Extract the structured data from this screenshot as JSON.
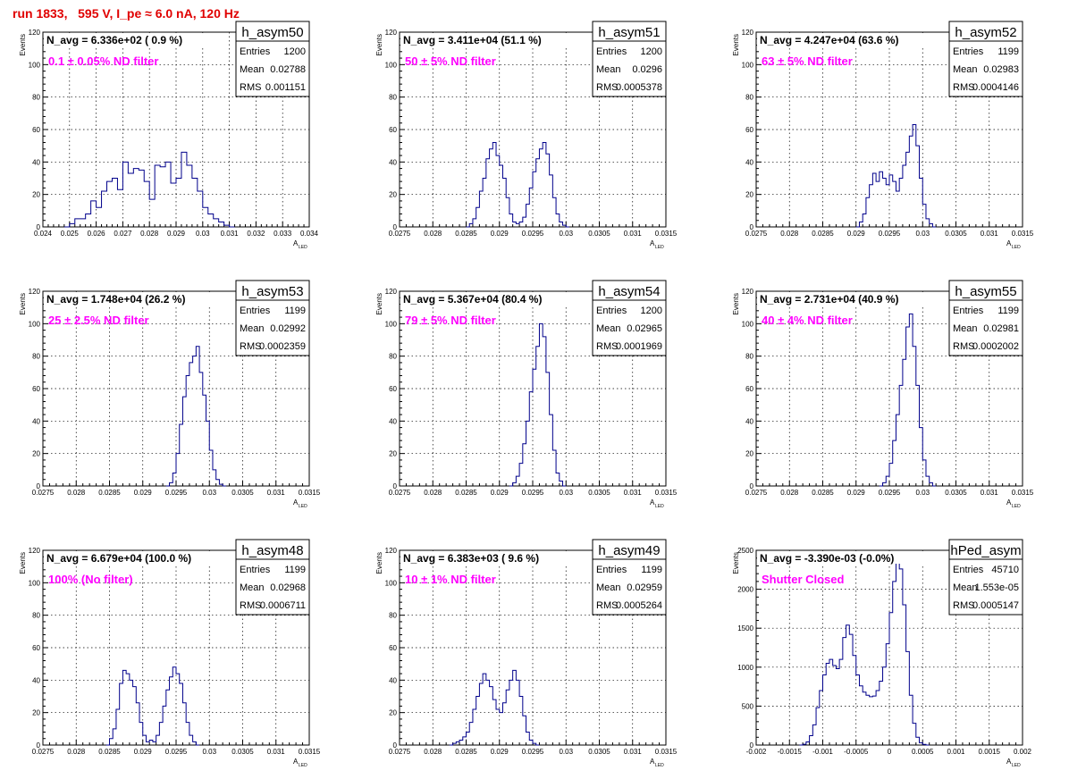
{
  "run_title": "run 1833,   595 V, I_pe ≈ 6.0 nA, 120 Hz",
  "ylabel": "Events",
  "xlabel_main": "A",
  "xlabel_sub": "LED",
  "stat_labels": [
    "Entries",
    "Mean",
    "RMS"
  ],
  "colors": {
    "histogram": "#00008b",
    "navg": "#000000",
    "annotation": "#ff00ff",
    "run_title": "#e00000",
    "grid": "#000000"
  },
  "chart_data": [
    {
      "type": "histogram",
      "name": "h_asym50",
      "navg": "N_avg = 6.336e+02 ( 0.9 %)",
      "annotation": "0.1 ± 0.05% ND filter",
      "stats": {
        "entries": "1200",
        "mean": "0.02788",
        "rms": "0.001151"
      },
      "xlim": [
        0.024,
        0.034
      ],
      "ylim": [
        0,
        120
      ],
      "xticks": [
        "0.024",
        "0.025",
        "0.026",
        "0.027",
        "0.028",
        "0.029",
        "0.03",
        "0.031",
        "0.032",
        "0.033",
        "0.034"
      ],
      "yticks": [
        "0",
        "20",
        "40",
        "60",
        "80",
        "100",
        "120"
      ],
      "bins": [
        [
          0.0248,
          0
        ],
        [
          0.025,
          2
        ],
        [
          0.0252,
          5
        ],
        [
          0.0254,
          5
        ],
        [
          0.0256,
          8
        ],
        [
          0.0258,
          16
        ],
        [
          0.026,
          12
        ],
        [
          0.0262,
          22
        ],
        [
          0.0264,
          28
        ],
        [
          0.0266,
          30
        ],
        [
          0.0268,
          23
        ],
        [
          0.027,
          40
        ],
        [
          0.0272,
          33
        ],
        [
          0.0274,
          36
        ],
        [
          0.0276,
          35
        ],
        [
          0.0278,
          28
        ],
        [
          0.028,
          17
        ],
        [
          0.0282,
          38
        ],
        [
          0.0284,
          37
        ],
        [
          0.0286,
          40
        ],
        [
          0.0288,
          27
        ],
        [
          0.029,
          30
        ],
        [
          0.0292,
          46
        ],
        [
          0.0294,
          38
        ],
        [
          0.0296,
          30
        ],
        [
          0.0298,
          22
        ],
        [
          0.03,
          12
        ],
        [
          0.0302,
          8
        ],
        [
          0.0304,
          5
        ],
        [
          0.0306,
          3
        ],
        [
          0.0308,
          1
        ],
        [
          0.031,
          0
        ]
      ]
    },
    {
      "type": "histogram",
      "name": "h_asym51",
      "navg": "N_avg = 3.411e+04 (51.1 %)",
      "annotation": "50 ± 5% ND filter",
      "stats": {
        "entries": "1200",
        "mean": "0.0296",
        "rms": "0.0005378"
      },
      "xlim": [
        0.0275,
        0.0315
      ],
      "ylim": [
        0,
        120
      ],
      "xticks": [
        "0.0275",
        "0.028",
        "0.0285",
        "0.029",
        "0.0295",
        "0.03",
        "0.0305",
        "0.031",
        "0.0315"
      ],
      "yticks": [
        "0",
        "20",
        "40",
        "60",
        "80",
        "100",
        "120"
      ],
      "bins": [
        [
          0.0285,
          0
        ],
        [
          0.02855,
          2
        ],
        [
          0.0286,
          5
        ],
        [
          0.02865,
          12
        ],
        [
          0.0287,
          22
        ],
        [
          0.02875,
          30
        ],
        [
          0.0288,
          42
        ],
        [
          0.02885,
          48
        ],
        [
          0.0289,
          52
        ],
        [
          0.02895,
          44
        ],
        [
          0.029,
          38
        ],
        [
          0.02905,
          30
        ],
        [
          0.0291,
          18
        ],
        [
          0.02915,
          8
        ],
        [
          0.0292,
          3
        ],
        [
          0.02925,
          2
        ],
        [
          0.0293,
          3
        ],
        [
          0.02935,
          6
        ],
        [
          0.0294,
          14
        ],
        [
          0.02945,
          24
        ],
        [
          0.0295,
          34
        ],
        [
          0.02955,
          42
        ],
        [
          0.0296,
          48
        ],
        [
          0.02965,
          52
        ],
        [
          0.0297,
          45
        ],
        [
          0.02975,
          32
        ],
        [
          0.0298,
          18
        ],
        [
          0.02985,
          8
        ],
        [
          0.0299,
          3
        ],
        [
          0.02995,
          1
        ],
        [
          0.03,
          0
        ]
      ]
    },
    {
      "type": "histogram",
      "name": "h_asym52",
      "navg": "N_avg = 4.247e+04 (63.6 %)",
      "annotation": "63 ± 5% ND filter",
      "stats": {
        "entries": "1199",
        "mean": "0.02983",
        "rms": "0.0004146"
      },
      "xlim": [
        0.0275,
        0.0315
      ],
      "ylim": [
        0,
        120
      ],
      "xticks": [
        "0.0275",
        "0.028",
        "0.0285",
        "0.029",
        "0.0295",
        "0.03",
        "0.0305",
        "0.031",
        "0.0315"
      ],
      "yticks": [
        "0",
        "20",
        "40",
        "60",
        "80",
        "100",
        "120"
      ],
      "bins": [
        [
          0.029,
          0
        ],
        [
          0.02905,
          3
        ],
        [
          0.0291,
          8
        ],
        [
          0.02915,
          18
        ],
        [
          0.0292,
          26
        ],
        [
          0.02925,
          33
        ],
        [
          0.0293,
          28
        ],
        [
          0.02935,
          34
        ],
        [
          0.0294,
          30
        ],
        [
          0.02945,
          26
        ],
        [
          0.0295,
          32
        ],
        [
          0.02955,
          28
        ],
        [
          0.0296,
          22
        ],
        [
          0.02965,
          30
        ],
        [
          0.0297,
          38
        ],
        [
          0.02975,
          46
        ],
        [
          0.0298,
          56
        ],
        [
          0.02985,
          63
        ],
        [
          0.0299,
          50
        ],
        [
          0.02995,
          30
        ],
        [
          0.03,
          14
        ],
        [
          0.03005,
          5
        ],
        [
          0.0301,
          2
        ],
        [
          0.03015,
          0
        ]
      ]
    },
    {
      "type": "histogram",
      "name": "h_asym53",
      "navg": "N_avg = 1.748e+04 (26.2 %)",
      "annotation": "25 ± 2.5% ND filter",
      "stats": {
        "entries": "1199",
        "mean": "0.02992",
        "rms": "0.0002359"
      },
      "xlim": [
        0.0275,
        0.0315
      ],
      "ylim": [
        0,
        120
      ],
      "xticks": [
        "0.0275",
        "0.028",
        "0.0285",
        "0.029",
        "0.0295",
        "0.03",
        "0.0305",
        "0.031",
        "0.0315"
      ],
      "yticks": [
        "0",
        "20",
        "40",
        "60",
        "80",
        "100",
        "120"
      ],
      "bins": [
        [
          0.02935,
          0
        ],
        [
          0.0294,
          2
        ],
        [
          0.02945,
          8
        ],
        [
          0.0295,
          20
        ],
        [
          0.02955,
          38
        ],
        [
          0.0296,
          55
        ],
        [
          0.02965,
          68
        ],
        [
          0.0297,
          76
        ],
        [
          0.02975,
          80
        ],
        [
          0.0298,
          86
        ],
        [
          0.02985,
          70
        ],
        [
          0.0299,
          56
        ],
        [
          0.02995,
          40
        ],
        [
          0.03,
          22
        ],
        [
          0.03005,
          10
        ],
        [
          0.0301,
          4
        ],
        [
          0.03015,
          1
        ],
        [
          0.0302,
          0
        ]
      ]
    },
    {
      "type": "histogram",
      "name": "h_asym54",
      "navg": "N_avg = 5.367e+04 (80.4 %)",
      "annotation": "79 ± 5% ND filter",
      "stats": {
        "entries": "1200",
        "mean": "0.02965",
        "rms": "0.0001969"
      },
      "xlim": [
        0.0275,
        0.0315
      ],
      "ylim": [
        0,
        120
      ],
      "xticks": [
        "0.0275",
        "0.028",
        "0.0285",
        "0.029",
        "0.0295",
        "0.03",
        "0.0305",
        "0.031",
        "0.0315"
      ],
      "yticks": [
        "0",
        "20",
        "40",
        "60",
        "80",
        "100",
        "120"
      ],
      "bins": [
        [
          0.02915,
          0
        ],
        [
          0.0292,
          2
        ],
        [
          0.02925,
          6
        ],
        [
          0.0293,
          14
        ],
        [
          0.02935,
          26
        ],
        [
          0.0294,
          40
        ],
        [
          0.02945,
          58
        ],
        [
          0.0295,
          72
        ],
        [
          0.02955,
          86
        ],
        [
          0.0296,
          100
        ],
        [
          0.02965,
          92
        ],
        [
          0.0297,
          70
        ],
        [
          0.02975,
          44
        ],
        [
          0.0298,
          22
        ],
        [
          0.02985,
          8
        ],
        [
          0.0299,
          3
        ],
        [
          0.02995,
          0
        ]
      ]
    },
    {
      "type": "histogram",
      "name": "h_asym55",
      "navg": "N_avg = 2.731e+04 (40.9 %)",
      "annotation": "40 ± 4% ND filter",
      "stats": {
        "entries": "1199",
        "mean": "0.02981",
        "rms": "0.0002002"
      },
      "xlim": [
        0.0275,
        0.0315
      ],
      "ylim": [
        0,
        120
      ],
      "xticks": [
        "0.0275",
        "0.028",
        "0.0285",
        "0.029",
        "0.0295",
        "0.03",
        "0.0305",
        "0.031",
        "0.0315"
      ],
      "yticks": [
        "0",
        "20",
        "40",
        "60",
        "80",
        "100",
        "120"
      ],
      "bins": [
        [
          0.02935,
          0
        ],
        [
          0.0294,
          2
        ],
        [
          0.02945,
          6
        ],
        [
          0.0295,
          14
        ],
        [
          0.02955,
          28
        ],
        [
          0.0296,
          44
        ],
        [
          0.02965,
          62
        ],
        [
          0.0297,
          78
        ],
        [
          0.02975,
          98
        ],
        [
          0.0298,
          106
        ],
        [
          0.02985,
          86
        ],
        [
          0.0299,
          62
        ],
        [
          0.02995,
          36
        ],
        [
          0.03,
          16
        ],
        [
          0.03005,
          6
        ],
        [
          0.0301,
          2
        ],
        [
          0.03015,
          0
        ]
      ]
    },
    {
      "type": "histogram",
      "name": "h_asym48",
      "navg": "N_avg = 6.679e+04 (100.0 %)",
      "annotation": "100% (No filter)",
      "stats": {
        "entries": "1199",
        "mean": "0.02968",
        "rms": "0.0006711"
      },
      "xlim": [
        0.0275,
        0.0315
      ],
      "ylim": [
        0,
        120
      ],
      "xticks": [
        "0.0275",
        "0.028",
        "0.0285",
        "0.029",
        "0.0295",
        "0.03",
        "0.0305",
        "0.031",
        "0.0315"
      ],
      "yticks": [
        "0",
        "20",
        "40",
        "60",
        "80",
        "100",
        "120"
      ],
      "bins": [
        [
          0.02845,
          0
        ],
        [
          0.0285,
          4
        ],
        [
          0.02855,
          10
        ],
        [
          0.0286,
          22
        ],
        [
          0.02865,
          38
        ],
        [
          0.0287,
          46
        ],
        [
          0.02875,
          44
        ],
        [
          0.0288,
          40
        ],
        [
          0.02885,
          36
        ],
        [
          0.0289,
          26
        ],
        [
          0.02895,
          14
        ],
        [
          0.029,
          6
        ],
        [
          0.02905,
          2
        ],
        [
          0.0291,
          3
        ],
        [
          0.02915,
          2
        ],
        [
          0.0292,
          6
        ],
        [
          0.02925,
          14
        ],
        [
          0.0293,
          24
        ],
        [
          0.02935,
          34
        ],
        [
          0.0294,
          42
        ],
        [
          0.02945,
          48
        ],
        [
          0.0295,
          44
        ],
        [
          0.02955,
          38
        ],
        [
          0.0296,
          26
        ],
        [
          0.02965,
          14
        ],
        [
          0.0297,
          6
        ],
        [
          0.02975,
          2
        ],
        [
          0.0298,
          0
        ]
      ]
    },
    {
      "type": "histogram",
      "name": "h_asym49",
      "navg": "N_avg = 6.383e+03 ( 9.6 %)",
      "annotation": "10 ± 1% ND filter",
      "stats": {
        "entries": "1199",
        "mean": "0.02959",
        "rms": "0.0005264"
      },
      "xlim": [
        0.0275,
        0.0315
      ],
      "ylim": [
        0,
        120
      ],
      "xticks": [
        "0.0275",
        "0.028",
        "0.0285",
        "0.029",
        "0.0295",
        "0.03",
        "0.0305",
        "0.031",
        "0.0315"
      ],
      "yticks": [
        "0",
        "20",
        "40",
        "60",
        "80",
        "100",
        "120"
      ],
      "bins": [
        [
          0.02825,
          0
        ],
        [
          0.0283,
          1
        ],
        [
          0.02835,
          2
        ],
        [
          0.0284,
          3
        ],
        [
          0.02845,
          5
        ],
        [
          0.0285,
          8
        ],
        [
          0.02855,
          14
        ],
        [
          0.0286,
          22
        ],
        [
          0.02865,
          30
        ],
        [
          0.0287,
          38
        ],
        [
          0.02875,
          44
        ],
        [
          0.0288,
          40
        ],
        [
          0.02885,
          36
        ],
        [
          0.0289,
          28
        ],
        [
          0.02895,
          22
        ],
        [
          0.029,
          20
        ],
        [
          0.02905,
          26
        ],
        [
          0.0291,
          34
        ],
        [
          0.02915,
          40
        ],
        [
          0.0292,
          46
        ],
        [
          0.02925,
          40
        ],
        [
          0.0293,
          30
        ],
        [
          0.02935,
          18
        ],
        [
          0.0294,
          8
        ],
        [
          0.02945,
          3
        ],
        [
          0.0295,
          1
        ],
        [
          0.02955,
          0
        ]
      ]
    },
    {
      "type": "histogram",
      "name": "hPed_asym",
      "navg": "N_avg = -3.390e-03 (-0.0%)",
      "annotation": "Shutter Closed",
      "stats": {
        "entries": "45710",
        "mean": "1.553e-05",
        "rms": "0.0005147"
      },
      "xlim": [
        -0.002,
        0.002
      ],
      "ylim": [
        0,
        2500
      ],
      "xticks": [
        "-0.002",
        "-0.0015",
        "-0.001",
        "-0.0005",
        "0",
        "0.0005",
        "0.001",
        "0.0015",
        "0.002"
      ],
      "yticks": [
        "0",
        "500",
        "1000",
        "1500",
        "2000",
        "2500"
      ],
      "bins": [
        [
          -0.00135,
          0
        ],
        [
          -0.0013,
          10
        ],
        [
          -0.00125,
          40
        ],
        [
          -0.0012,
          120
        ],
        [
          -0.00115,
          260
        ],
        [
          -0.0011,
          480
        ],
        [
          -0.00105,
          700
        ],
        [
          -0.001,
          900
        ],
        [
          -0.00095,
          1050
        ],
        [
          -0.0009,
          1100
        ],
        [
          -0.00085,
          1020
        ],
        [
          -0.0008,
          980
        ],
        [
          -0.00075,
          1100
        ],
        [
          -0.0007,
          1380
        ],
        [
          -0.00065,
          1540
        ],
        [
          -0.0006,
          1420
        ],
        [
          -0.00055,
          1150
        ],
        [
          -0.0005,
          900
        ],
        [
          -0.00045,
          760
        ],
        [
          -0.0004,
          680
        ],
        [
          -0.00035,
          640
        ],
        [
          -0.0003,
          620
        ],
        [
          -0.00025,
          630
        ],
        [
          -0.0002,
          700
        ],
        [
          -0.00015,
          820
        ],
        [
          -0.0001,
          1000
        ],
        [
          -5e-05,
          1300
        ],
        [
          0.0,
          1700
        ],
        [
          5e-05,
          2100
        ],
        [
          0.0001,
          2380
        ],
        [
          0.00015,
          2260
        ],
        [
          0.0002,
          1800
        ],
        [
          0.00025,
          1200
        ],
        [
          0.0003,
          640
        ],
        [
          0.00035,
          280
        ],
        [
          0.0004,
          100
        ],
        [
          0.00045,
          30
        ],
        [
          0.0005,
          8
        ],
        [
          0.00055,
          0
        ]
      ]
    }
  ]
}
